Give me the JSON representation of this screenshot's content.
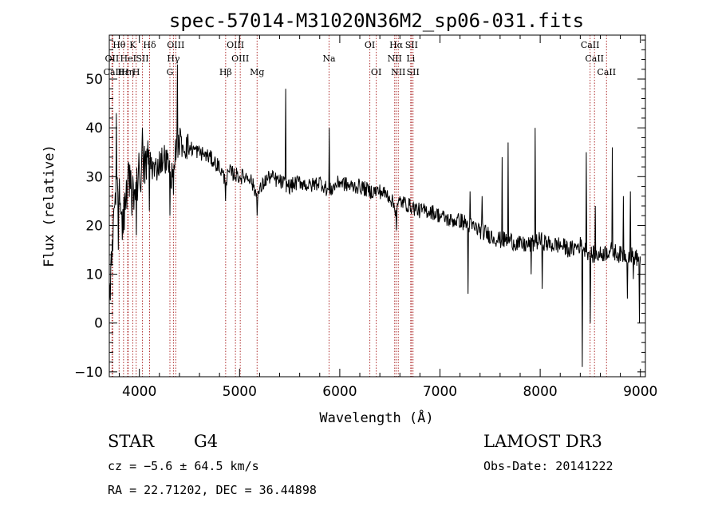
{
  "chart_data": {
    "type": "line",
    "title": "spec-57014-M31020N36M2_sp06-031.fits",
    "xlabel": "Wavelength (Å)",
    "ylabel": "Flux (relative)",
    "xlim": [
      3700,
      9050
    ],
    "ylim": [
      -11,
      59
    ],
    "xticks": [
      4000,
      5000,
      6000,
      7000,
      8000,
      9000
    ],
    "xtick_labels": [
      "4000",
      "5000",
      "6000",
      "7000",
      "8000",
      "9000"
    ],
    "yticks": [
      -10,
      0,
      10,
      20,
      30,
      40,
      50
    ],
    "ytick_labels": [
      "−10",
      "0",
      "10",
      "20",
      "30",
      "40",
      "50"
    ],
    "spectrum_anchors": {
      "x": [
        3700,
        3720,
        3760,
        3800,
        3850,
        3900,
        3950,
        4000,
        4050,
        4100,
        4150,
        4200,
        4250,
        4300,
        4340,
        4360,
        4400,
        4500,
        4600,
        4700,
        4800,
        4861,
        4900,
        5000,
        5100,
        5175,
        5250,
        5300,
        5400,
        5500,
        5600,
        5700,
        5800,
        5893,
        6000,
        6100,
        6200,
        6300,
        6400,
        6500,
        6563,
        6600,
        6700,
        6800,
        6900,
        7000,
        7100,
        7200,
        7300,
        7400,
        7500,
        7600,
        7700,
        7800,
        7900,
        8000,
        8100,
        8200,
        8300,
        8400,
        8500,
        8600,
        8700,
        8800,
        8900,
        9000
      ],
      "y": [
        4,
        14,
        28,
        26,
        22,
        30,
        27,
        31,
        32,
        34,
        31,
        33,
        34,
        32,
        29,
        36,
        37,
        36,
        35,
        34,
        32,
        29,
        31,
        30,
        30,
        26,
        29,
        30,
        29,
        28,
        29,
        28,
        29,
        27,
        29,
        28,
        28,
        27,
        27,
        26,
        23,
        25,
        24,
        23,
        23,
        22,
        21,
        21,
        20,
        19,
        18,
        17,
        17,
        16,
        16,
        17,
        16,
        16,
        15,
        16,
        14,
        14,
        15,
        14,
        14,
        13
      ]
    },
    "spikes": [
      {
        "x": 3770,
        "y": 43
      },
      {
        "x": 3790,
        "y": 15
      },
      {
        "x": 3830,
        "y": 17
      },
      {
        "x": 3890,
        "y": 33
      },
      {
        "x": 3925,
        "y": 22
      },
      {
        "x": 3968,
        "y": 18
      },
      {
        "x": 4030,
        "y": 40
      },
      {
        "x": 4102,
        "y": 23
      },
      {
        "x": 4305,
        "y": 22
      },
      {
        "x": 4380,
        "y": 53
      },
      {
        "x": 4404,
        "y": 40
      },
      {
        "x": 4861,
        "y": 25
      },
      {
        "x": 5175,
        "y": 22
      },
      {
        "x": 5460,
        "y": 48
      },
      {
        "x": 5893,
        "y": 40
      },
      {
        "x": 6563,
        "y": 19
      },
      {
        "x": 7280,
        "y": 6
      },
      {
        "x": 7300,
        "y": 27
      },
      {
        "x": 7420,
        "y": 26
      },
      {
        "x": 7620,
        "y": 34
      },
      {
        "x": 7680,
        "y": 37
      },
      {
        "x": 7910,
        "y": 10
      },
      {
        "x": 7950,
        "y": 40
      },
      {
        "x": 8020,
        "y": 7
      },
      {
        "x": 8420,
        "y": -9
      },
      {
        "x": 8460,
        "y": 35
      },
      {
        "x": 8500,
        "y": 0
      },
      {
        "x": 8550,
        "y": 24
      },
      {
        "x": 8720,
        "y": 36
      },
      {
        "x": 8830,
        "y": 26
      },
      {
        "x": 8870,
        "y": 5
      },
      {
        "x": 8900,
        "y": 27
      },
      {
        "x": 8930,
        "y": 9
      },
      {
        "x": 8990,
        "y": 0
      }
    ],
    "spectral_lines": [
      {
        "label": "Hθ",
        "x": 3798,
        "row": 1
      },
      {
        "label": "OII",
        "x": 3727,
        "row": 2
      },
      {
        "label": "CaII",
        "x": 3735,
        "row": 3
      },
      {
        "label": "Hε",
        "x": 3842,
        "row": 3
      },
      {
        "label": "K",
        "x": 3934,
        "row": 1
      },
      {
        "label": "HeI",
        "x": 3889,
        "row": 2
      },
      {
        "label": "SII",
        "x": 4030,
        "row": 2
      },
      {
        "label": "Hη",
        "x": 3883,
        "row": 3
      },
      {
        "label": "H",
        "x": 3968,
        "row": 3
      },
      {
        "label": "Hδ",
        "x": 4102,
        "row": 1
      },
      {
        "label": "OIII",
        "x": 4363,
        "row": 1
      },
      {
        "label": "Hγ",
        "x": 4340,
        "row": 2
      },
      {
        "label": "G",
        "x": 4305,
        "row": 3
      },
      {
        "label": "OIII",
        "x": 4959,
        "row": 1
      },
      {
        "label": "OIII",
        "x": 5007,
        "row": 2
      },
      {
        "label": "Hβ",
        "x": 4861,
        "row": 3
      },
      {
        "label": "Mg",
        "x": 5175,
        "row": 3
      },
      {
        "label": "Na",
        "x": 5893,
        "row": 2
      },
      {
        "label": "OI",
        "x": 6300,
        "row": 1
      },
      {
        "label": "OI",
        "x": 6364,
        "row": 3
      },
      {
        "label": "Hα",
        "x": 6563,
        "row": 1
      },
      {
        "label": "SII",
        "x": 6716,
        "row": 1
      },
      {
        "label": "NII",
        "x": 6548,
        "row": 2
      },
      {
        "label": "Li",
        "x": 6708,
        "row": 2
      },
      {
        "label": "NII",
        "x": 6584,
        "row": 3
      },
      {
        "label": "SII",
        "x": 6731,
        "row": 3
      },
      {
        "label": "CaII",
        "x": 8498,
        "row": 1
      },
      {
        "label": "CaII",
        "x": 8542,
        "row": 2
      },
      {
        "label": "CaII",
        "x": 8662,
        "row": 3
      }
    ]
  },
  "info": {
    "object_class": "STAR",
    "subclass": "G4",
    "survey": "LAMOST DR3",
    "cz": "cz = −5.6 ± 64.5 km/s",
    "obs_date": "Obs-Date: 20141222",
    "coords": "RA =  22.71202, DEC =  36.44898"
  },
  "colors": {
    "spectrum": "#000000",
    "line_marker": "#b03030",
    "axis": "#000000"
  }
}
